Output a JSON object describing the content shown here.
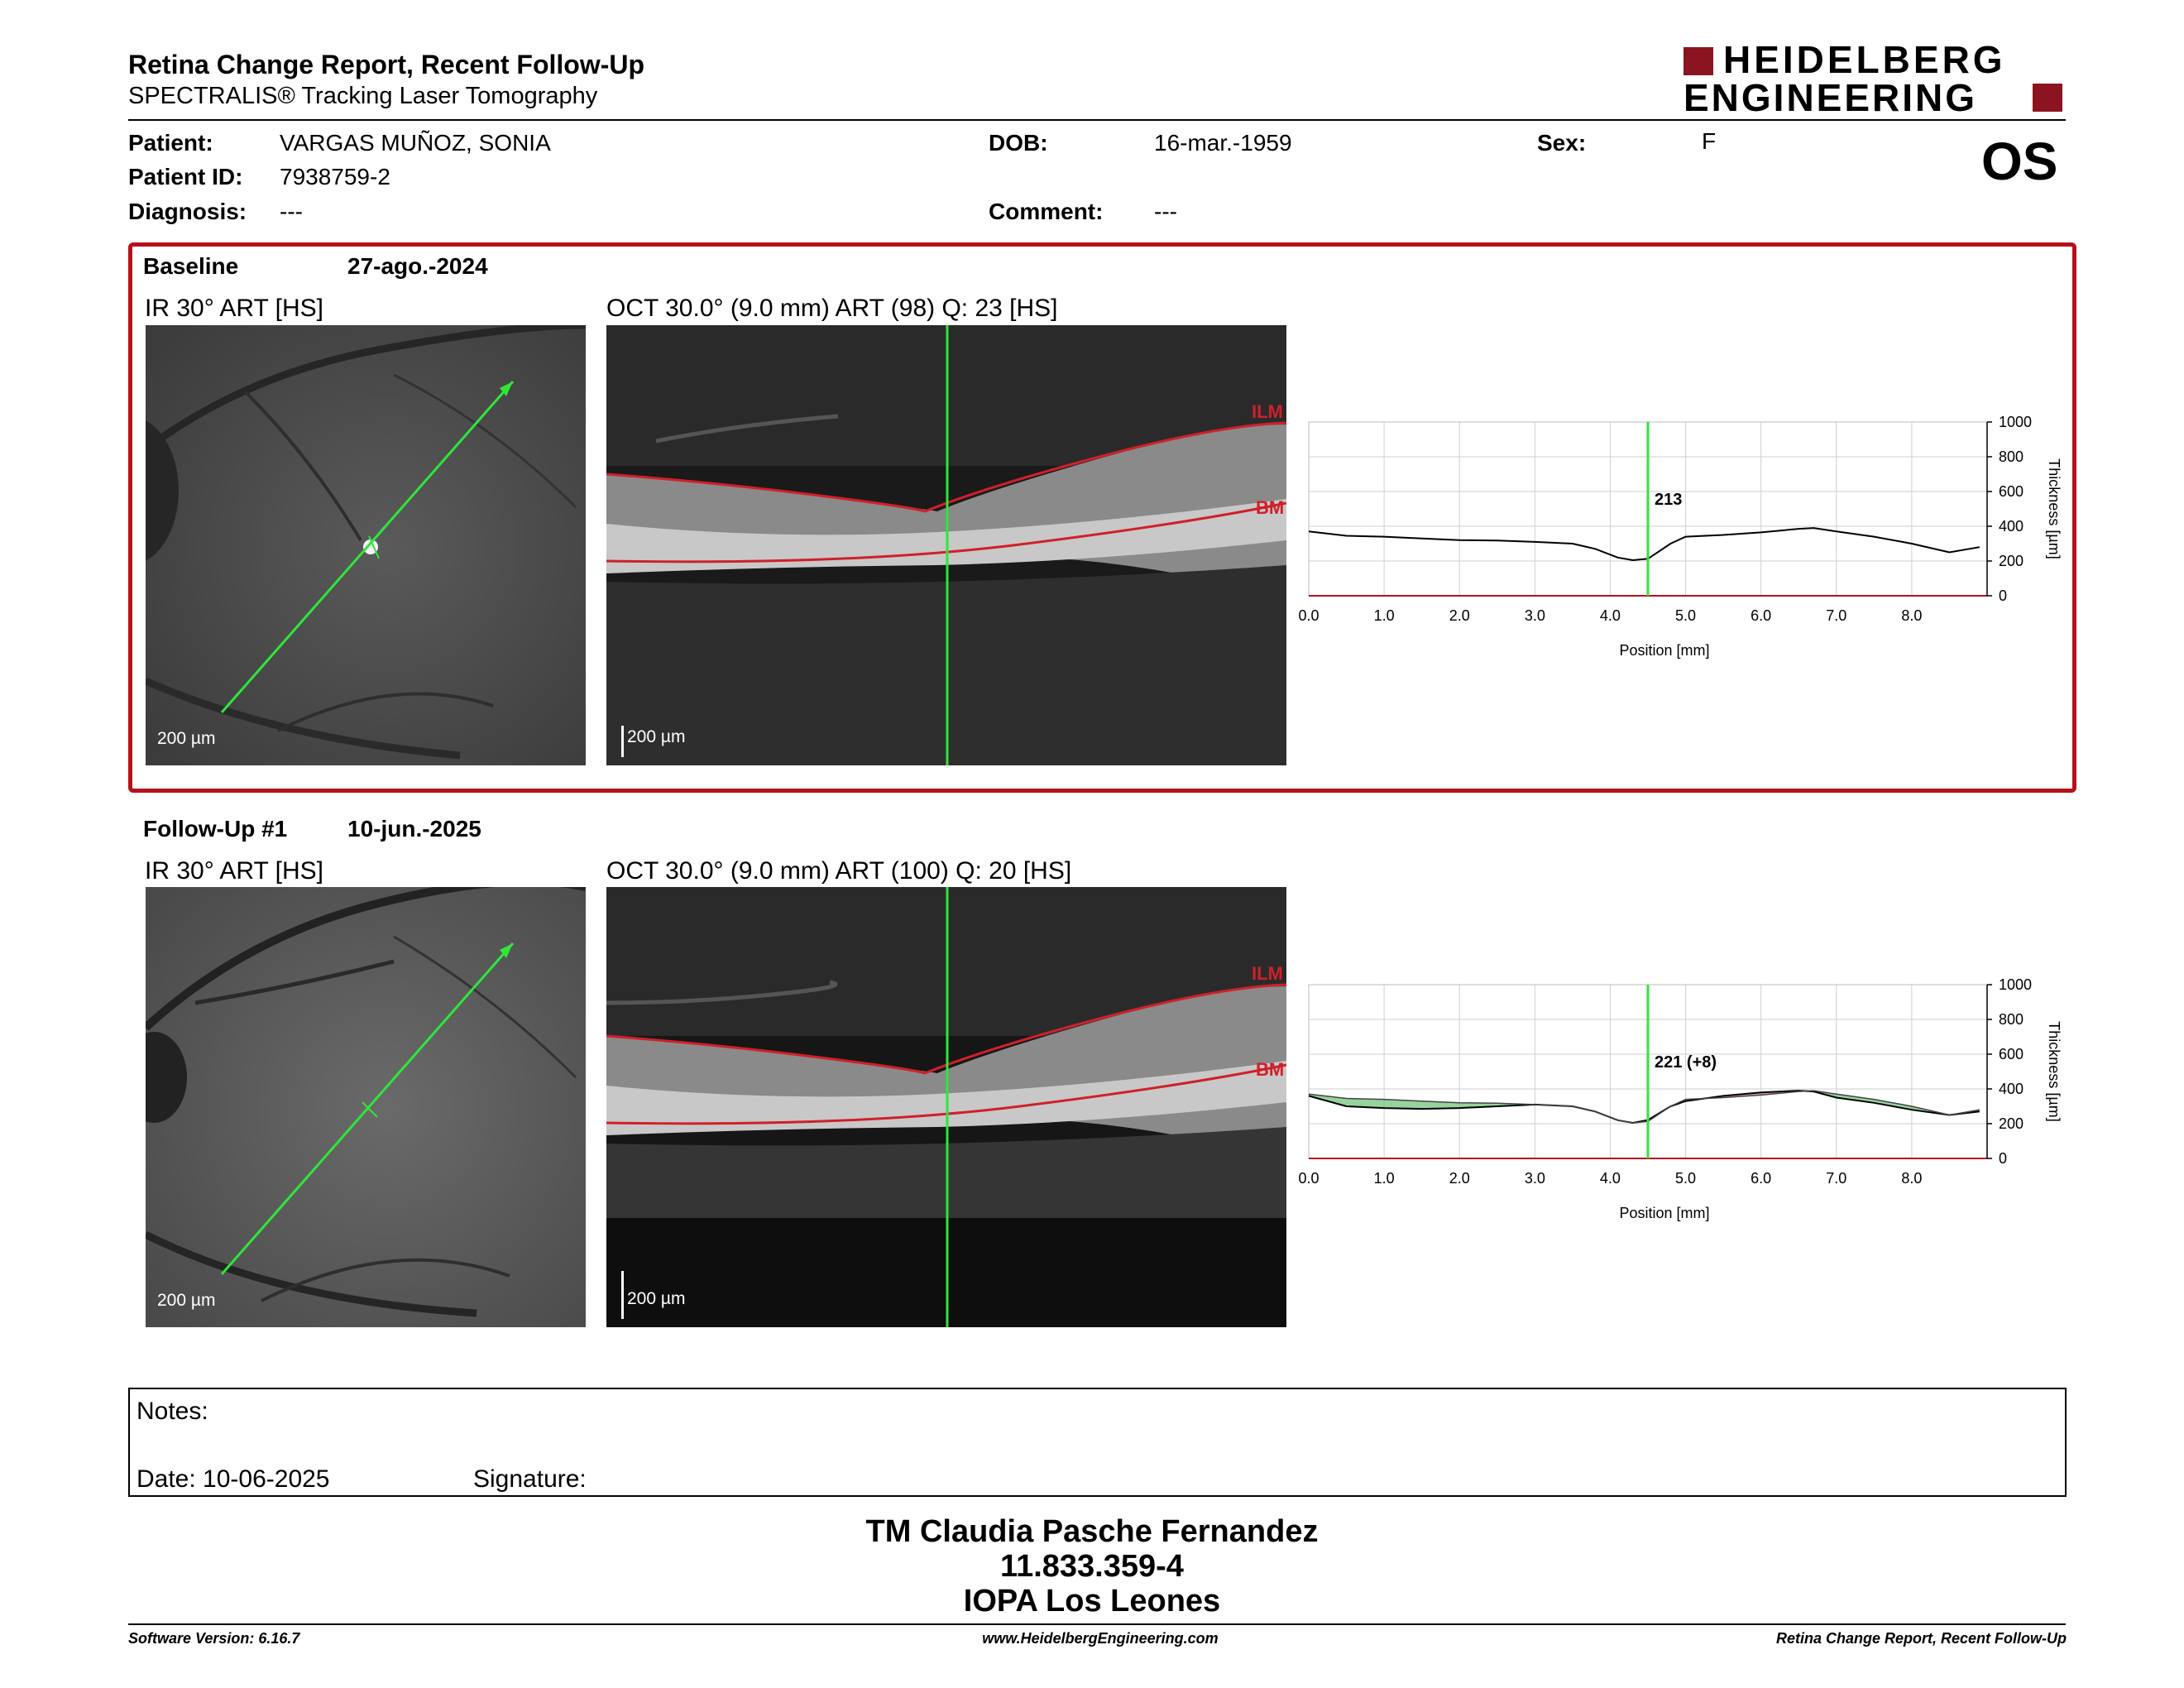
{
  "header": {
    "title": "Retina Change Report, Recent Follow-Up",
    "subtitle": "SPECTRALIS® Tracking Laser Tomography",
    "logo_line1": "HEIDELBERG",
    "logo_line2": "ENGINEERING",
    "eye": "OS"
  },
  "patient": {
    "patient_label": "Patient:",
    "patient_value": "VARGAS MUÑOZ, SONIA",
    "id_label": "Patient ID:",
    "id_value": "7938759-2",
    "diagnosis_label": "Diagnosis:",
    "diagnosis_value": "---",
    "dob_label": "DOB:",
    "dob_value": "16-mar.-1959",
    "comment_label": "Comment:",
    "comment_value": "---",
    "sex_label": "Sex:",
    "sex_value": "F"
  },
  "baseline": {
    "label": "Baseline",
    "date": "27-ago.-2024",
    "ir_title": "IR 30° ART [HS]",
    "oct_title": "OCT 30.0° (9.0 mm) ART (98) Q: 23 [HS]",
    "scale": "200 µm",
    "ilm": "ILM",
    "bm": "BM"
  },
  "followup": {
    "label": "Follow-Up #1",
    "date": "10-jun.-2025",
    "ir_title": "IR 30° ART [HS]",
    "oct_title": "OCT 30.0° (9.0 mm) ART (100) Q: 20 [HS]",
    "scale": "200 µm",
    "ilm": "ILM",
    "bm": "BM"
  },
  "chart_data": [
    {
      "type": "line",
      "xlabel": "Position [mm]",
      "ylabel": "Thickness [µm]",
      "xlim": [
        0,
        9
      ],
      "ylim": [
        0,
        1000
      ],
      "xticks": [
        "0.0",
        "1.0",
        "2.0",
        "3.0",
        "4.0",
        "5.0",
        "6.0",
        "7.0",
        "8.0"
      ],
      "yticks": [
        "0",
        "200",
        "400",
        "600",
        "800",
        "1000"
      ],
      "marker_x": 4.5,
      "marker_label": "213",
      "series": [
        {
          "x": [
            0,
            0.5,
            1,
            1.5,
            2,
            2.5,
            3,
            3.5,
            3.8,
            4.1,
            4.3,
            4.5,
            4.8,
            5,
            5.5,
            6,
            6.5,
            6.7,
            7,
            7.5,
            8,
            8.5,
            8.9
          ],
          "y": [
            370,
            345,
            340,
            330,
            320,
            318,
            310,
            300,
            270,
            220,
            205,
            213,
            300,
            340,
            350,
            365,
            385,
            390,
            370,
            340,
            300,
            250,
            280
          ]
        }
      ]
    },
    {
      "type": "line",
      "xlabel": "Position [mm]",
      "ylabel": "Thickness [µm]",
      "xlim": [
        0,
        9
      ],
      "ylim": [
        0,
        1000
      ],
      "xticks": [
        "0.0",
        "1.0",
        "2.0",
        "3.0",
        "4.0",
        "5.0",
        "6.0",
        "7.0",
        "8.0"
      ],
      "yticks": [
        "0",
        "200",
        "400",
        "600",
        "800",
        "1000"
      ],
      "marker_x": 4.5,
      "marker_label": "221 (+8)",
      "series": [
        {
          "x": [
            0,
            0.5,
            1,
            1.5,
            2,
            2.5,
            3,
            3.5,
            3.8,
            4.1,
            4.3,
            4.5,
            4.8,
            5,
            5.5,
            6,
            6.5,
            6.7,
            7,
            7.5,
            8,
            8.5,
            8.9
          ],
          "y": [
            360,
            300,
            290,
            285,
            290,
            300,
            310,
            300,
            270,
            220,
            205,
            221,
            300,
            330,
            360,
            380,
            390,
            385,
            350,
            320,
            280,
            250,
            270
          ]
        },
        {
          "x": [
            0,
            0.5,
            1,
            1.5,
            2,
            2.5,
            3,
            3.5,
            3.8,
            4.1,
            4.3,
            4.5,
            4.8,
            5,
            5.5,
            6,
            6.5,
            6.7,
            7,
            7.5,
            8,
            8.5,
            8.9
          ],
          "y": [
            370,
            345,
            340,
            330,
            320,
            318,
            310,
            300,
            270,
            220,
            205,
            213,
            300,
            340,
            350,
            365,
            385,
            390,
            370,
            340,
            300,
            250,
            280
          ]
        }
      ],
      "positive_color": "#c0505a",
      "negative_color": "#3fb04f"
    }
  ],
  "notes": {
    "label": "Notes:",
    "date_label": "Date: 10-06-2025",
    "signature_label": "Signature:"
  },
  "footer_sign": {
    "name": "TM Claudia Pasche Fernandez",
    "number": "11.833.359-4",
    "place": "IOPA Los Leones"
  },
  "footer": {
    "software": "Software Version: 6.16.7",
    "website": "www.HeidelbergEngineering.com",
    "report": "Retina Change Report, Recent Follow-Up"
  },
  "colors": {
    "accent": "#b5121b",
    "scan_line": "#2ee63a"
  }
}
